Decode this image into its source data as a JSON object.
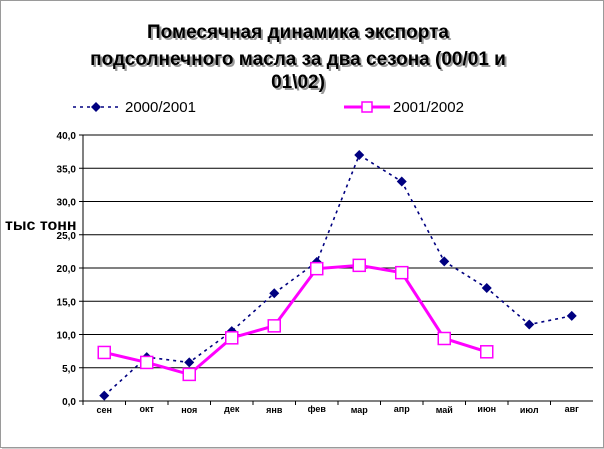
{
  "chart_data": {
    "type": "line",
    "title": "Помесячная динамика экспорта подсолнечного масла  за два сезона (00/01 и 01\\02)",
    "title_lines": [
      "Помесячная динамика экспорта",
      "подсолнечного масла  за два сезона (00/01 и",
      "01\\02)"
    ],
    "ylabel": "тыс тонн",
    "xlabel": "",
    "ylim": [
      0,
      40
    ],
    "yticks": [
      "0,0",
      "5,0",
      "10,0",
      "15,0",
      "20,0",
      "25,0",
      "30,0",
      "35,0",
      "40,0"
    ],
    "grid": true,
    "legend_position": "top",
    "categories": [
      "сен",
      "окт",
      "ноя",
      "дек",
      "янв",
      "фев",
      "мар",
      "апр",
      "май",
      "июн",
      "июл",
      "авг"
    ],
    "series": [
      {
        "name": "2000/2001",
        "color": "#000080",
        "line_style": "dotted",
        "marker": "diamond",
        "values": [
          0.8,
          6.6,
          5.8,
          10.5,
          16.2,
          20.9,
          37.0,
          33.0,
          21.0,
          17.0,
          11.5,
          12.8
        ]
      },
      {
        "name": "2001/2002",
        "color": "#ff00ff",
        "line_style": "solid",
        "marker": "square",
        "values": [
          7.3,
          5.8,
          4.0,
          9.5,
          11.3,
          19.9,
          20.4,
          19.3,
          9.4,
          7.4,
          null,
          null
        ]
      }
    ]
  }
}
